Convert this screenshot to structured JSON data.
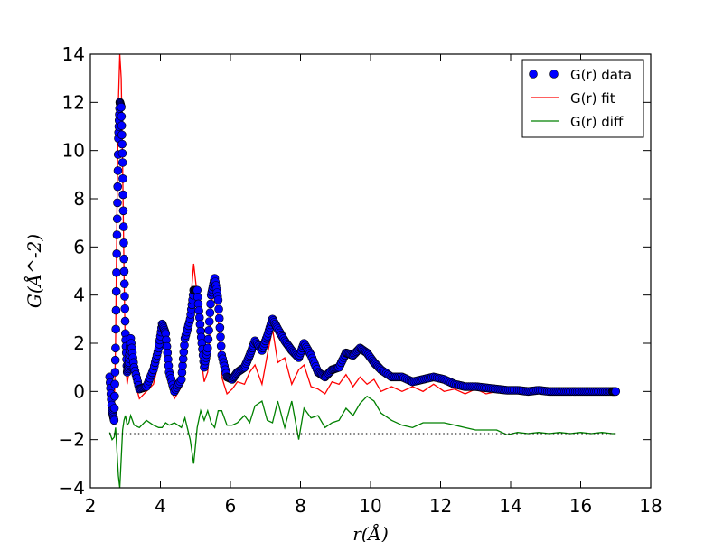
{
  "chart_data": {
    "type": "line",
    "title": "",
    "xlabel": "r(Å)",
    "ylabel": "G(Å^-2)",
    "xlim": [
      2,
      18
    ],
    "ylim": [
      -4,
      14
    ],
    "xticks": [
      "2",
      "4",
      "6",
      "8",
      "10",
      "12",
      "14",
      "16",
      "18"
    ],
    "yticks": [
      "−4",
      "−2",
      "0",
      "2",
      "4",
      "6",
      "8",
      "10",
      "12",
      "14"
    ],
    "legend_position": "top-right",
    "grid": false,
    "baseline_dotted_y": -1.75,
    "series": [
      {
        "name": "G(r) data",
        "style": "markers",
        "color": "#0000ff",
        "points": [
          [
            2.55,
            0.6
          ],
          [
            2.62,
            -0.8
          ],
          [
            2.68,
            -1.2
          ],
          [
            2.72,
            1.8
          ],
          [
            2.76,
            6.5
          ],
          [
            2.8,
            10.5
          ],
          [
            2.84,
            12.0
          ],
          [
            2.88,
            11.8
          ],
          [
            2.92,
            9.5
          ],
          [
            2.96,
            5.5
          ],
          [
            3.0,
            2.4
          ],
          [
            3.05,
            0.8
          ],
          [
            3.1,
            1.2
          ],
          [
            3.15,
            2.2
          ],
          [
            3.25,
            1.0
          ],
          [
            3.4,
            0.1
          ],
          [
            3.6,
            0.2
          ],
          [
            3.8,
            0.9
          ],
          [
            3.95,
            1.8
          ],
          [
            4.05,
            2.8
          ],
          [
            4.15,
            2.4
          ],
          [
            4.25,
            0.8
          ],
          [
            4.4,
            0.0
          ],
          [
            4.6,
            0.5
          ],
          [
            4.7,
            2.2
          ],
          [
            4.85,
            3.0
          ],
          [
            4.95,
            4.2
          ],
          [
            5.05,
            4.2
          ],
          [
            5.15,
            2.5
          ],
          [
            5.25,
            1.0
          ],
          [
            5.35,
            1.8
          ],
          [
            5.45,
            4.0
          ],
          [
            5.55,
            4.7
          ],
          [
            5.65,
            3.8
          ],
          [
            5.75,
            1.5
          ],
          [
            5.9,
            0.6
          ],
          [
            6.05,
            0.5
          ],
          [
            6.2,
            0.8
          ],
          [
            6.4,
            1.0
          ],
          [
            6.55,
            1.5
          ],
          [
            6.7,
            2.1
          ],
          [
            6.9,
            1.7
          ],
          [
            7.05,
            2.3
          ],
          [
            7.2,
            3.0
          ],
          [
            7.35,
            2.6
          ],
          [
            7.55,
            2.1
          ],
          [
            7.75,
            1.7
          ],
          [
            7.95,
            1.4
          ],
          [
            8.1,
            2.0
          ],
          [
            8.3,
            1.5
          ],
          [
            8.5,
            0.8
          ],
          [
            8.7,
            0.6
          ],
          [
            8.9,
            0.9
          ],
          [
            9.1,
            1.0
          ],
          [
            9.3,
            1.6
          ],
          [
            9.5,
            1.5
          ],
          [
            9.7,
            1.8
          ],
          [
            9.9,
            1.6
          ],
          [
            10.1,
            1.2
          ],
          [
            10.3,
            0.9
          ],
          [
            10.6,
            0.6
          ],
          [
            10.9,
            0.6
          ],
          [
            11.2,
            0.4
          ],
          [
            11.5,
            0.5
          ],
          [
            11.8,
            0.6
          ],
          [
            12.1,
            0.5
          ],
          [
            12.4,
            0.3
          ],
          [
            12.7,
            0.2
          ],
          [
            13.0,
            0.2
          ],
          [
            13.3,
            0.15
          ],
          [
            13.6,
            0.1
          ],
          [
            13.9,
            0.05
          ],
          [
            14.2,
            0.05
          ],
          [
            14.5,
            0.0
          ],
          [
            14.8,
            0.05
          ],
          [
            15.1,
            0.0
          ],
          [
            15.4,
            0.0
          ],
          [
            15.7,
            0.0
          ],
          [
            16.0,
            0.0
          ],
          [
            16.3,
            0.0
          ],
          [
            16.6,
            0.0
          ],
          [
            16.9,
            0.0
          ],
          [
            17.0,
            0.0
          ]
        ]
      },
      {
        "name": "G(r) fit",
        "style": "line",
        "color": "#ff0000",
        "points": [
          [
            2.55,
            0.5
          ],
          [
            2.62,
            -0.6
          ],
          [
            2.68,
            -1.0
          ],
          [
            2.72,
            2.0
          ],
          [
            2.76,
            7.5
          ],
          [
            2.8,
            12.0
          ],
          [
            2.84,
            14.0
          ],
          [
            2.88,
            13.0
          ],
          [
            2.92,
            9.5
          ],
          [
            2.96,
            5.0
          ],
          [
            3.0,
            1.5
          ],
          [
            3.05,
            0.3
          ],
          [
            3.1,
            0.8
          ],
          [
            3.15,
            1.6
          ],
          [
            3.25,
            0.5
          ],
          [
            3.4,
            -0.3
          ],
          [
            3.6,
            0.0
          ],
          [
            3.8,
            0.3
          ],
          [
            3.95,
            1.2
          ],
          [
            4.05,
            2.6
          ],
          [
            4.15,
            2.0
          ],
          [
            4.25,
            0.4
          ],
          [
            4.4,
            -0.3
          ],
          [
            4.6,
            0.2
          ],
          [
            4.7,
            1.5
          ],
          [
            4.85,
            3.5
          ],
          [
            4.95,
            5.3
          ],
          [
            5.05,
            4.0
          ],
          [
            5.15,
            1.5
          ],
          [
            5.25,
            0.4
          ],
          [
            5.35,
            0.8
          ],
          [
            5.45,
            3.5
          ],
          [
            5.55,
            4.5
          ],
          [
            5.65,
            3.0
          ],
          [
            5.75,
            0.6
          ],
          [
            5.9,
            -0.1
          ],
          [
            6.05,
            0.1
          ],
          [
            6.2,
            0.4
          ],
          [
            6.4,
            0.3
          ],
          [
            6.55,
            0.8
          ],
          [
            6.7,
            1.1
          ],
          [
            6.9,
            0.3
          ],
          [
            7.05,
            1.5
          ],
          [
            7.2,
            2.6
          ],
          [
            7.35,
            1.2
          ],
          [
            7.55,
            1.4
          ],
          [
            7.75,
            0.3
          ],
          [
            7.95,
            0.9
          ],
          [
            8.1,
            1.1
          ],
          [
            8.3,
            0.2
          ],
          [
            8.5,
            0.1
          ],
          [
            8.7,
            -0.1
          ],
          [
            8.9,
            0.4
          ],
          [
            9.1,
            0.3
          ],
          [
            9.3,
            0.7
          ],
          [
            9.5,
            0.2
          ],
          [
            9.7,
            0.6
          ],
          [
            9.9,
            0.3
          ],
          [
            10.1,
            0.5
          ],
          [
            10.3,
            0.0
          ],
          [
            10.6,
            0.2
          ],
          [
            10.9,
            0.0
          ],
          [
            11.2,
            0.2
          ],
          [
            11.5,
            0.0
          ],
          [
            11.8,
            0.3
          ],
          [
            12.1,
            0.0
          ],
          [
            12.4,
            0.1
          ],
          [
            12.7,
            -0.1
          ],
          [
            13.0,
            0.1
          ],
          [
            13.3,
            -0.1
          ],
          [
            13.6,
            0.0
          ],
          [
            13.9,
            0.05
          ],
          [
            14.2,
            -0.05
          ],
          [
            14.5,
            0.0
          ],
          [
            14.8,
            -0.05
          ],
          [
            15.1,
            0.0
          ],
          [
            15.4,
            -0.05
          ],
          [
            15.7,
            0.0
          ],
          [
            16.0,
            -0.05
          ],
          [
            16.3,
            0.0
          ],
          [
            16.6,
            -0.05
          ],
          [
            16.9,
            0.0
          ],
          [
            17.0,
            0.0
          ]
        ]
      },
      {
        "name": "G(r) diff",
        "style": "line",
        "color": "#008000",
        "points": [
          [
            2.55,
            -1.7
          ],
          [
            2.62,
            -2.0
          ],
          [
            2.68,
            -1.9
          ],
          [
            2.72,
            -1.5
          ],
          [
            2.76,
            -2.5
          ],
          [
            2.8,
            -3.5
          ],
          [
            2.84,
            -4.0
          ],
          [
            2.88,
            -2.8
          ],
          [
            2.92,
            -1.6
          ],
          [
            2.96,
            -1.2
          ],
          [
            3.0,
            -1.0
          ],
          [
            3.05,
            -1.4
          ],
          [
            3.1,
            -1.3
          ],
          [
            3.15,
            -1.0
          ],
          [
            3.25,
            -1.4
          ],
          [
            3.4,
            -1.5
          ],
          [
            3.6,
            -1.2
          ],
          [
            3.8,
            -1.4
          ],
          [
            3.95,
            -1.5
          ],
          [
            4.05,
            -1.5
          ],
          [
            4.15,
            -1.3
          ],
          [
            4.25,
            -1.4
          ],
          [
            4.4,
            -1.3
          ],
          [
            4.6,
            -1.5
          ],
          [
            4.7,
            -1.1
          ],
          [
            4.85,
            -2.0
          ],
          [
            4.95,
            -3.0
          ],
          [
            5.05,
            -1.5
          ],
          [
            5.15,
            -0.8
          ],
          [
            5.25,
            -1.2
          ],
          [
            5.35,
            -0.8
          ],
          [
            5.45,
            -1.3
          ],
          [
            5.55,
            -1.5
          ],
          [
            5.65,
            -0.8
          ],
          [
            5.75,
            -0.8
          ],
          [
            5.9,
            -1.4
          ],
          [
            6.05,
            -1.4
          ],
          [
            6.2,
            -1.3
          ],
          [
            6.4,
            -1.0
          ],
          [
            6.55,
            -1.3
          ],
          [
            6.7,
            -0.6
          ],
          [
            6.9,
            -0.4
          ],
          [
            7.05,
            -1.2
          ],
          [
            7.2,
            -1.3
          ],
          [
            7.35,
            -0.4
          ],
          [
            7.55,
            -1.5
          ],
          [
            7.75,
            -0.4
          ],
          [
            7.95,
            -2.0
          ],
          [
            8.1,
            -0.7
          ],
          [
            8.3,
            -1.1
          ],
          [
            8.5,
            -1.0
          ],
          [
            8.7,
            -1.5
          ],
          [
            8.9,
            -1.3
          ],
          [
            9.1,
            -1.2
          ],
          [
            9.3,
            -0.7
          ],
          [
            9.5,
            -1.0
          ],
          [
            9.7,
            -0.5
          ],
          [
            9.9,
            -0.2
          ],
          [
            10.1,
            -0.4
          ],
          [
            10.3,
            -0.9
          ],
          [
            10.6,
            -1.2
          ],
          [
            10.9,
            -1.4
          ],
          [
            11.2,
            -1.5
          ],
          [
            11.5,
            -1.3
          ],
          [
            11.8,
            -1.3
          ],
          [
            12.1,
            -1.3
          ],
          [
            12.4,
            -1.4
          ],
          [
            12.7,
            -1.5
          ],
          [
            13.0,
            -1.6
          ],
          [
            13.3,
            -1.6
          ],
          [
            13.6,
            -1.6
          ],
          [
            13.9,
            -1.8
          ],
          [
            14.2,
            -1.7
          ],
          [
            14.5,
            -1.75
          ],
          [
            14.8,
            -1.7
          ],
          [
            15.1,
            -1.75
          ],
          [
            15.4,
            -1.7
          ],
          [
            15.7,
            -1.75
          ],
          [
            16.0,
            -1.7
          ],
          [
            16.3,
            -1.75
          ],
          [
            16.6,
            -1.7
          ],
          [
            16.9,
            -1.75
          ],
          [
            17.0,
            -1.75
          ]
        ]
      }
    ]
  }
}
